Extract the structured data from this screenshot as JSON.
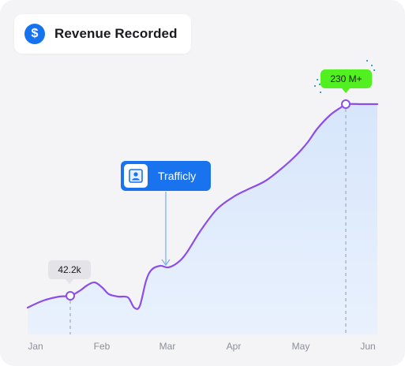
{
  "header": {
    "title": "Revenue Recorded",
    "icon": "dollar-icon",
    "icon_glyph": "$",
    "accent_color": "#1673f0"
  },
  "annotations": {
    "first_value": "42.2k",
    "peak_value": "230 M+",
    "peak_color": "#52f020",
    "source_label": "Trafficly",
    "source_icon": "trafficly-logo-icon",
    "source_color": "#1a73ee"
  },
  "chart_data": {
    "type": "area",
    "x": [
      "Jan",
      "Feb",
      "Mar",
      "Apr",
      "May",
      "Jun"
    ],
    "series": [
      {
        "values": [
          31,
          56,
          86,
          180,
          240,
          270
        ],
        "line_color": "#8b4fe8",
        "fill_color": "#dbe8fc"
      }
    ],
    "highlighted_points": [
      {
        "x": "Jan",
        "x_offset_months": 0.65,
        "label": "42.2k"
      },
      {
        "x": "May",
        "x_offset_months": 0.7,
        "label": "230 M+"
      }
    ],
    "title": "Revenue Recorded",
    "xlabel": "",
    "ylabel": "",
    "grid": false,
    "legend": "none"
  }
}
